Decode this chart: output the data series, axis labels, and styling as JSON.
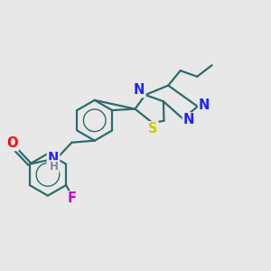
{
  "background_color": "#e8e8e8",
  "bond_color": "#2d6b6b",
  "atom_colors": {
    "O": "#ff0000",
    "N": "#2222ff",
    "S": "#cccc00",
    "F": "#cc00cc",
    "H": "#888888",
    "C": "#2d6b6b"
  },
  "line_width": 1.6,
  "font_size": 10.5
}
